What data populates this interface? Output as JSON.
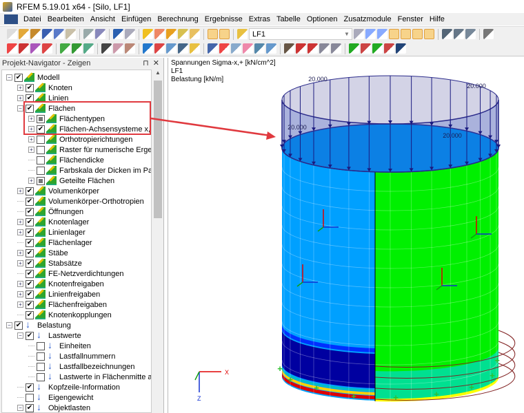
{
  "window": {
    "title": "RFEM 5.19.01 x64 - [Silo, LF1]"
  },
  "menu": [
    "Datei",
    "Bearbeiten",
    "Ansicht",
    "Einfügen",
    "Berechnung",
    "Ergebnisse",
    "Extras",
    "Tabelle",
    "Optionen",
    "Zusatzmodule",
    "Fenster",
    "Hilfe"
  ],
  "toolbar": {
    "loadcase": "LF1"
  },
  "navigator": {
    "title": "Projekt-Navigator - Zeigen",
    "items": [
      {
        "label": "Modell",
        "level": 0,
        "exp": "minus",
        "state": "checked",
        "icon": "model"
      },
      {
        "label": "Knoten",
        "level": 1,
        "exp": "plus",
        "state": "checked",
        "icon": "model"
      },
      {
        "label": "Linien",
        "level": 1,
        "exp": "plus",
        "state": "checked",
        "icon": "model"
      },
      {
        "label": "Flächen",
        "level": 1,
        "exp": "minus",
        "state": "checked",
        "icon": "model"
      },
      {
        "label": "Flächentypen",
        "level": 2,
        "exp": "plus",
        "state": "partial",
        "icon": "model"
      },
      {
        "label": "Flächen-Achsensysteme x,y,z",
        "level": 2,
        "exp": "plus",
        "state": "checked",
        "icon": "model"
      },
      {
        "label": "Orthotropierichtungen",
        "level": 2,
        "exp": "plus",
        "state": "unchecked",
        "icon": "model"
      },
      {
        "label": "Raster für numerische Ergebnis",
        "level": 2,
        "exp": "plus",
        "state": "unchecked",
        "icon": "model"
      },
      {
        "label": "Flächendicke",
        "level": 2,
        "exp": "none",
        "state": "unchecked",
        "icon": "model"
      },
      {
        "label": "Farbskala der Dicken im Panel",
        "level": 2,
        "exp": "none",
        "state": "unchecked",
        "icon": "model"
      },
      {
        "label": "Geteilte Flächen",
        "level": 2,
        "exp": "plus",
        "state": "partial",
        "icon": "model"
      },
      {
        "label": "Volumenkörper",
        "level": 1,
        "exp": "plus",
        "state": "checked",
        "icon": "model"
      },
      {
        "label": "Volumenkörper-Orthotropien",
        "level": 1,
        "exp": "none",
        "state": "checked",
        "icon": "model"
      },
      {
        "label": "Öffnungen",
        "level": 1,
        "exp": "none",
        "state": "checked",
        "icon": "model"
      },
      {
        "label": "Knotenlager",
        "level": 1,
        "exp": "plus",
        "state": "checked",
        "icon": "model"
      },
      {
        "label": "Linienlager",
        "level": 1,
        "exp": "plus",
        "state": "checked",
        "icon": "model"
      },
      {
        "label": "Flächenlager",
        "level": 1,
        "exp": "none",
        "state": "checked",
        "icon": "model"
      },
      {
        "label": "Stäbe",
        "level": 1,
        "exp": "plus",
        "state": "checked",
        "icon": "model"
      },
      {
        "label": "Stabsätze",
        "level": 1,
        "exp": "plus",
        "state": "checked",
        "icon": "model"
      },
      {
        "label": "FE-Netzverdichtungen",
        "level": 1,
        "exp": "none",
        "state": "checked",
        "icon": "model"
      },
      {
        "label": "Knotenfreigaben",
        "level": 1,
        "exp": "plus",
        "state": "checked",
        "icon": "model"
      },
      {
        "label": "Linienfreigaben",
        "level": 1,
        "exp": "plus",
        "state": "checked",
        "icon": "model"
      },
      {
        "label": "Flächenfreigaben",
        "level": 1,
        "exp": "plus",
        "state": "checked",
        "icon": "model"
      },
      {
        "label": "Knotenkopplungen",
        "level": 1,
        "exp": "none",
        "state": "checked",
        "icon": "model"
      },
      {
        "label": "Belastung",
        "level": 0,
        "exp": "minus",
        "state": "checked",
        "icon": "load"
      },
      {
        "label": "Lastwerte",
        "level": 1,
        "exp": "minus",
        "state": "checked",
        "icon": "load"
      },
      {
        "label": "Einheiten",
        "level": 2,
        "exp": "none",
        "state": "unchecked",
        "icon": "load"
      },
      {
        "label": "Lastfallnummern",
        "level": 2,
        "exp": "none",
        "state": "unchecked",
        "icon": "load"
      },
      {
        "label": "Lastfallbezeichnungen",
        "level": 2,
        "exp": "none",
        "state": "unchecked",
        "icon": "load"
      },
      {
        "label": "Lastwerte in Flächenmitte anzei",
        "level": 2,
        "exp": "none",
        "state": "unchecked",
        "icon": "load"
      },
      {
        "label": "Kopfzeile-Information",
        "level": 1,
        "exp": "none",
        "state": "checked",
        "icon": "load"
      },
      {
        "label": "Eigengewicht",
        "level": 1,
        "exp": "none",
        "state": "unchecked",
        "icon": "load"
      },
      {
        "label": "Objektlasten",
        "level": 1,
        "exp": "minus",
        "state": "checked",
        "icon": "load"
      }
    ]
  },
  "view": {
    "info": [
      "Spannungen Sigma-x,+ [kN/cm^2]",
      "LF1",
      "Belastung [kN/m]"
    ],
    "load_labels": [
      "20.000",
      "20.000",
      "20.000",
      "20.000"
    ],
    "axis": {
      "x": "X",
      "z": "Z"
    },
    "colors": {
      "blue": "#00a0ff",
      "green": "#00f000",
      "load": "#c8c8e0",
      "annotation": "#e0393e"
    }
  }
}
